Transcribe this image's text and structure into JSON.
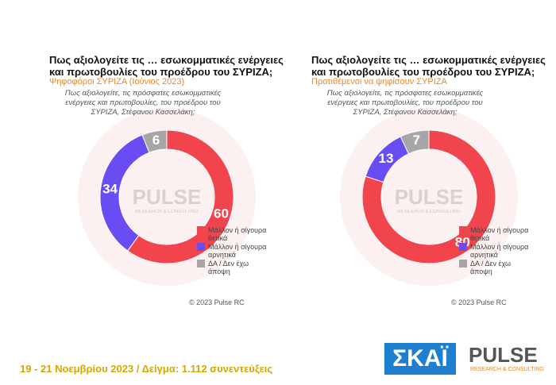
{
  "chart_data": [
    {
      "type": "pie",
      "title": "Πως αξιολογείτε τις … εσωκομματικές ενέργειες και πρωτοβουλίες του προέδρου του ΣΥΡΙΖΑ;",
      "subtitle": "Ψηφοφόροι ΣΥΡΙΖΑ (Ιούνιος 2023)",
      "question": "Πως αξιολογείτε, τις πρόσφατες εσωκομματικές ενέργειες και πρωτοβουλίες, του προέδρου του ΣΥΡΙΖΑ, Στέφανου Κασσελάκη;",
      "categories": [
        "Μάλλον ή σίγουρα θετικά",
        "Μάλλον ή σίγουρα αρνητικά",
        "ΔΑ / Δεν έχω άποψη"
      ],
      "values": [
        60,
        34,
        6
      ],
      "colors": [
        "#f2444d",
        "#6a4df2",
        "#a6a6a6"
      ],
      "watermark": "PULSE",
      "watermark_sub": "RESEARCH & CONSULTING",
      "copyright": "© 2023 Pulse RC"
    },
    {
      "type": "pie",
      "title": "Πως αξιολογείτε τις … εσωκομματικές ενέργειες και πρωτοβουλίες του προέδρου του ΣΥΡΙΖΑ;",
      "subtitle": "Προτιθέμενοι να ψηφίσουν ΣΥΡΙΖΑ",
      "question": "Πως αξιολογείτε, τις πρόσφατες εσωκομματικές ενέργειες και πρωτοβουλίες, του προέδρου του ΣΥΡΙΖΑ, Στέφανου Κασσελάκη;",
      "categories": [
        "Μάλλον ή σίγουρα θετικά",
        "Μάλλον ή σίγουρα αρνητικά",
        "ΔΑ / Δεν έχω άποψη"
      ],
      "values": [
        80,
        13,
        7
      ],
      "colors": [
        "#f2444d",
        "#6a4df2",
        "#a6a6a6"
      ],
      "watermark": "PULSE",
      "watermark_sub": "RESEARCH & CONSULTING",
      "copyright": "© 2023 Pulse RC"
    }
  ],
  "footer": {
    "text": "19 - 21 Νοεμβρίου 2023 / Δείγμα: 1.112 συνεντεύξεις",
    "logo_skai": "ΣΚΑΪ",
    "logo_pulse": "PULSE",
    "logo_pulse_sub": "RESEARCH & CONSULTING"
  }
}
